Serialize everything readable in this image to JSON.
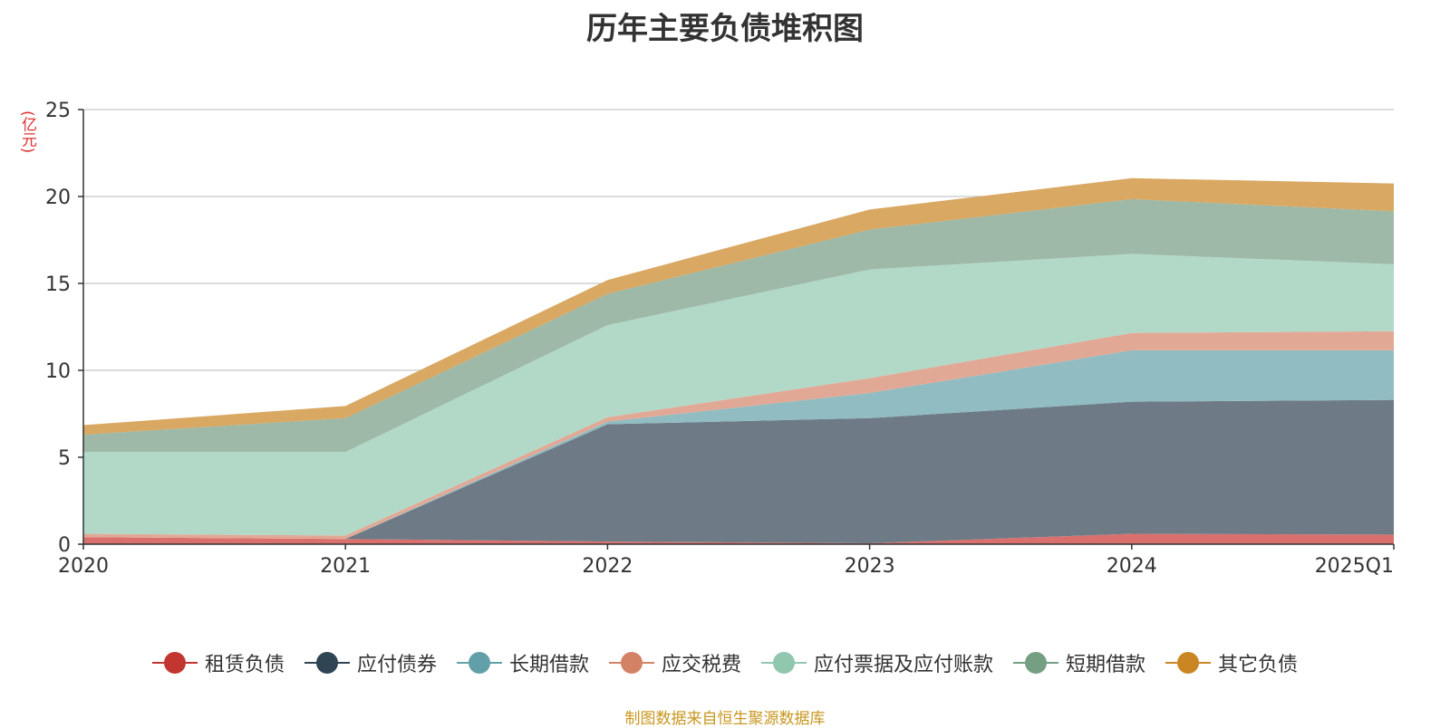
{
  "chart_data": {
    "type": "area",
    "stacked": true,
    "title": "历年主要负债堆积图",
    "y_unit": "(亿元)",
    "categories": [
      "2020",
      "2021",
      "2022",
      "2023",
      "2024",
      "2025Q1"
    ],
    "ylim": [
      0,
      25
    ],
    "yticks": [
      0,
      5,
      10,
      15,
      20,
      25
    ],
    "grid": true,
    "legend_position": "bottom",
    "series": [
      {
        "name": "租赁负债",
        "color": "#c23531",
        "area_color": "#d9706e",
        "values": [
          0.4,
          0.3,
          0.15,
          0.05,
          0.6,
          0.55
        ]
      },
      {
        "name": "应付债券",
        "color": "#2f4554",
        "area_color": "#6e7b86",
        "values": [
          0.0,
          0.0,
          6.75,
          7.2,
          7.6,
          7.75
        ]
      },
      {
        "name": "长期借款",
        "color": "#61a0a8",
        "area_color": "#90bcc2",
        "values": [
          0.0,
          0.0,
          0.15,
          1.45,
          2.95,
          2.85
        ]
      },
      {
        "name": "应交税费",
        "color": "#d48265",
        "area_color": "#e2a896",
        "values": [
          0.2,
          0.2,
          0.25,
          0.85,
          1.0,
          1.1
        ]
      },
      {
        "name": "应付票据及应付账款",
        "color": "#91c7ae",
        "area_color": "#b2d9c7",
        "values": [
          4.7,
          4.8,
          5.3,
          6.25,
          4.55,
          3.85
        ]
      },
      {
        "name": "短期借款",
        "color": "#749f83",
        "area_color": "#9eb9a7",
        "values": [
          1.0,
          1.95,
          1.8,
          2.3,
          3.15,
          3.05
        ]
      },
      {
        "name": "其它负债",
        "color": "#ca8622",
        "area_color": "#d9a862",
        "values": [
          0.55,
          0.7,
          0.8,
          1.15,
          1.2,
          1.6
        ]
      }
    ]
  },
  "source_note": "制图数据来自恒生聚源数据库"
}
